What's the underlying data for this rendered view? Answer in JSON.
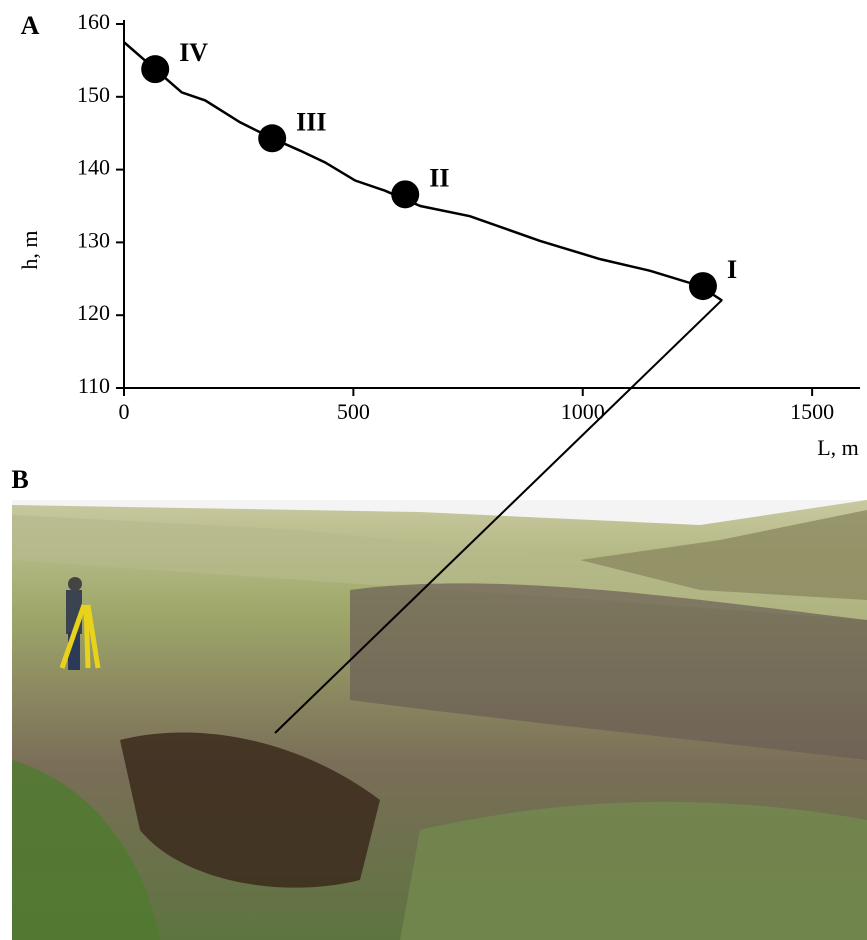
{
  "chart_data": {
    "type": "line",
    "panel_labels": [
      "A",
      "B"
    ],
    "xlabel": "L, m",
    "ylabel": "h, m",
    "x": [
      0,
      126,
      177,
      253,
      323,
      384,
      438,
      504,
      569,
      646,
      754,
      907,
      1038,
      1147,
      1256,
      1304
    ],
    "values": [
      157.5,
      150.6,
      149.5,
      146.5,
      144.3,
      142.6,
      141,
      138.5,
      137.1,
      135,
      133.6,
      130.2,
      127.7,
      126.1,
      124,
      122
    ],
    "color": "#000000",
    "points": {
      "x": [
        1262,
        613,
        323,
        68
      ],
      "y": [
        124,
        136.6,
        144.3,
        153.8
      ],
      "labels": [
        "I",
        "II",
        "III",
        "IV"
      ]
    },
    "xlim": [
      0,
      1600
    ],
    "ylim": [
      110,
      160
    ],
    "xticks": [
      0,
      500,
      1000,
      1500
    ],
    "yticks": [
      110,
      120,
      130,
      140,
      150,
      160
    ]
  }
}
